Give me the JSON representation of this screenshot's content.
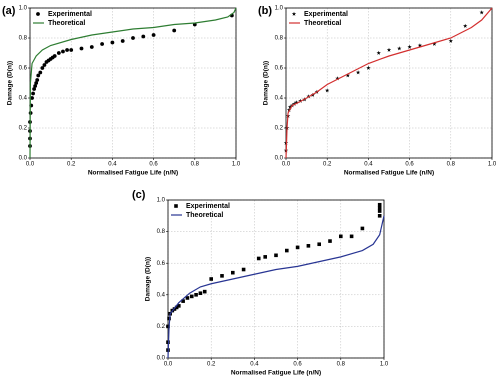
{
  "chart_data": [
    {
      "type": "scatter",
      "panel_label": "(a)",
      "x_label": "Normalised Fatigue Life (n/N)",
      "y_label": "Damage (D(n))",
      "xlim": [
        0,
        1
      ],
      "ylim": [
        0,
        1
      ],
      "xticks": [
        {
          "value": 0,
          "label": "0.0"
        },
        0.2,
        0.4,
        0.6,
        0.8,
        {
          "value": 1,
          "label": "1.0"
        }
      ],
      "yticks": [
        {
          "value": 0,
          "label": "0.0"
        },
        0.2,
        0.4,
        0.6,
        0.8,
        {
          "value": 1,
          "label": "1.0"
        }
      ],
      "grid": true,
      "legend": "upper left",
      "series": [
        {
          "name": "Experimental",
          "color": "#000000",
          "mode": "markers",
          "marker": "circle",
          "x": [
            0,
            0,
            0,
            0,
            0.003,
            0.006,
            0.01,
            0.015,
            0.02,
            0.025,
            0.03,
            0.035,
            0.04,
            0.05,
            0.06,
            0.07,
            0.08,
            0.09,
            0.1,
            0.11,
            0.12,
            0.14,
            0.16,
            0.18,
            0.2,
            0.25,
            0.3,
            0.35,
            0.4,
            0.45,
            0.5,
            0.55,
            0.6,
            0.7,
            0.8,
            0.98
          ],
          "values": [
            0.08,
            0.13,
            0.18,
            0.24,
            0.3,
            0.35,
            0.4,
            0.43,
            0.46,
            0.48,
            0.5,
            0.52,
            0.55,
            0.57,
            0.6,
            0.62,
            0.64,
            0.65,
            0.66,
            0.67,
            0.68,
            0.7,
            0.71,
            0.72,
            0.72,
            0.73,
            0.74,
            0.76,
            0.77,
            0.78,
            0.8,
            0.81,
            0.82,
            0.85,
            0.89,
            0.95
          ]
        },
        {
          "name": "Theoretical",
          "color": "#2e7d32",
          "mode": "line",
          "x": [
            0,
            0.002,
            0.01,
            0.03,
            0.06,
            0.1,
            0.2,
            0.3,
            0.4,
            0.5,
            0.6,
            0.7,
            0.8,
            0.9,
            0.96,
            0.99,
            1
          ],
          "values": [
            0,
            0.5,
            0.63,
            0.68,
            0.72,
            0.75,
            0.79,
            0.82,
            0.84,
            0.86,
            0.87,
            0.89,
            0.9,
            0.92,
            0.94,
            0.97,
            1
          ]
        }
      ]
    },
    {
      "type": "scatter",
      "panel_label": "(b)",
      "x_label": "Normalised Fatigue Life (n/N)",
      "y_label": "Damage (D(n))",
      "xlim": [
        0,
        1
      ],
      "ylim": [
        0,
        1
      ],
      "xticks": [
        {
          "value": 0,
          "label": "0.0"
        },
        0.2,
        0.4,
        0.6,
        0.8,
        {
          "value": 1,
          "label": "1.0"
        }
      ],
      "yticks": [
        {
          "value": 0,
          "label": "0.0"
        },
        0.2,
        0.4,
        0.6,
        0.8,
        {
          "value": 1,
          "label": "1.0"
        }
      ],
      "grid": true,
      "legend": "upper left",
      "series": [
        {
          "name": "Experimental",
          "color": "#000000",
          "mode": "markers",
          "marker": "star",
          "x": [
            0,
            0,
            0.005,
            0.01,
            0.015,
            0.02,
            0.03,
            0.04,
            0.05,
            0.07,
            0.09,
            0.11,
            0.13,
            0.15,
            0.2,
            0.25,
            0.3,
            0.35,
            0.4,
            0.45,
            0.5,
            0.55,
            0.6,
            0.65,
            0.72,
            0.8,
            0.87,
            0.95
          ],
          "values": [
            0.05,
            0.1,
            0.2,
            0.28,
            0.32,
            0.34,
            0.35,
            0.36,
            0.37,
            0.38,
            0.39,
            0.41,
            0.42,
            0.44,
            0.45,
            0.53,
            0.55,
            0.57,
            0.6,
            0.7,
            0.72,
            0.73,
            0.74,
            0.75,
            0.76,
            0.78,
            0.88,
            0.97
          ]
        },
        {
          "name": "Theoretical",
          "color": "#d32f2f",
          "mode": "line",
          "x": [
            0,
            0.005,
            0.01,
            0.03,
            0.06,
            0.1,
            0.15,
            0.2,
            0.3,
            0.4,
            0.5,
            0.6,
            0.7,
            0.8,
            0.9,
            0.95,
            1
          ],
          "values": [
            0,
            0.2,
            0.3,
            0.35,
            0.37,
            0.4,
            0.44,
            0.49,
            0.56,
            0.63,
            0.68,
            0.72,
            0.76,
            0.8,
            0.87,
            0.92,
            1
          ]
        }
      ]
    },
    {
      "type": "scatter",
      "panel_label": "(c)",
      "x_label": "Normalised Fatigue Life (n/N)",
      "y_label": "Damage (D(n))",
      "xlim": [
        0,
        1
      ],
      "ylim": [
        0,
        1
      ],
      "xticks": [
        {
          "value": 0,
          "label": "0.0"
        },
        0.2,
        0.4,
        0.6,
        0.8,
        {
          "value": 1,
          "label": "1.0"
        }
      ],
      "yticks": [
        {
          "value": 0,
          "label": "0.0"
        },
        0.2,
        0.4,
        0.6,
        0.8,
        {
          "value": 1,
          "label": "1.0"
        }
      ],
      "grid": true,
      "legend": "upper left",
      "series": [
        {
          "name": "Experimental",
          "color": "#000000",
          "mode": "markers",
          "marker": "square",
          "x": [
            0,
            0,
            0,
            0.005,
            0.01,
            0.02,
            0.03,
            0.04,
            0.05,
            0.07,
            0.09,
            0.11,
            0.13,
            0.15,
            0.17,
            0.2,
            0.25,
            0.3,
            0.35,
            0.42,
            0.45,
            0.5,
            0.55,
            0.6,
            0.65,
            0.7,
            0.75,
            0.8,
            0.85,
            0.9,
            0.98,
            0.98,
            0.98,
            0.98
          ],
          "values": [
            0.05,
            0.1,
            0.2,
            0.25,
            0.28,
            0.3,
            0.31,
            0.32,
            0.33,
            0.36,
            0.38,
            0.39,
            0.4,
            0.41,
            0.42,
            0.5,
            0.52,
            0.54,
            0.56,
            0.63,
            0.64,
            0.65,
            0.68,
            0.7,
            0.71,
            0.72,
            0.74,
            0.77,
            0.77,
            0.82,
            0.9,
            0.93,
            0.95,
            0.97
          ]
        },
        {
          "name": "Theoretical",
          "color": "#283593",
          "mode": "line",
          "x": [
            0,
            0.005,
            0.01,
            0.05,
            0.1,
            0.15,
            0.2,
            0.3,
            0.4,
            0.5,
            0.6,
            0.7,
            0.8,
            0.9,
            0.95,
            0.98,
            1
          ],
          "values": [
            0,
            0.2,
            0.28,
            0.35,
            0.41,
            0.45,
            0.47,
            0.5,
            0.53,
            0.56,
            0.58,
            0.61,
            0.64,
            0.68,
            0.72,
            0.78,
            0.9
          ]
        }
      ]
    }
  ]
}
